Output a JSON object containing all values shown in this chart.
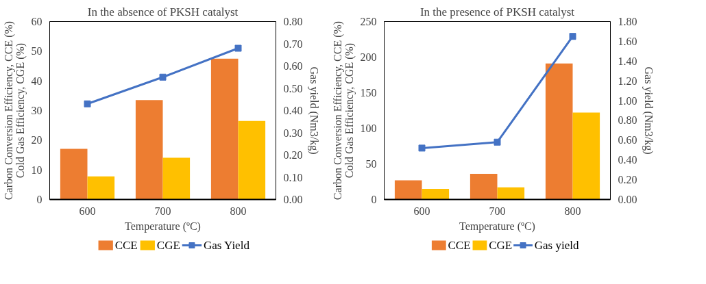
{
  "chart_data": [
    {
      "type": "bar",
      "title": "In the absence of PKSH catalyst",
      "categories": [
        "600",
        "700",
        "800"
      ],
      "xlabel": "Temperature (ºC)",
      "ylabel": "Carbon Conversion Efficiency, CCE (%)\nCold Gas Efficiency, CGE (%)",
      "y2label": "Gas yield (Nm3/kg)",
      "ylim": [
        0,
        60
      ],
      "yticks": [
        0,
        10,
        20,
        30,
        40,
        50,
        60
      ],
      "y2lim": [
        0,
        0.8
      ],
      "y2ticks": [
        {
          "value": 0,
          "label": "0.00"
        },
        {
          "value": 0.1,
          "label": "0.10"
        },
        {
          "value": 0.2,
          "label": "0.20"
        },
        {
          "value": 0.3,
          "label": "0.30"
        },
        {
          "value": 0.4,
          "label": "0.40"
        },
        {
          "value": 0.5,
          "label": "0.50"
        },
        {
          "value": 0.6,
          "label": "0.60"
        },
        {
          "value": 0.7,
          "label": "0.70"
        },
        {
          "value": 0.8,
          "label": "0.80"
        }
      ],
      "grid": false,
      "legend": "bottom",
      "series": [
        {
          "name": "CCE",
          "color": "#ed7d31",
          "values": [
            17.1,
            33.5,
            47.5
          ]
        },
        {
          "name": "CGE",
          "color": "#ffc000",
          "values": [
            7.8,
            14.1,
            26.5
          ]
        },
        {
          "name": "Gas Yield",
          "type": "line",
          "axis": "y2",
          "marker": "square",
          "color": "#4472c4",
          "values": [
            0.43,
            0.55,
            0.68
          ]
        }
      ]
    },
    {
      "type": "bar",
      "title": "In the presence of PKSH catalyst",
      "categories": [
        "600",
        "700",
        "800"
      ],
      "xlabel": "Temperature (ºC)",
      "ylabel": "Carbon Conversion Efficiency, CCE (%)\nCold Gas Efficiency, CGE (%)",
      "y2label": "Gas yield (Nm3/kg)",
      "ylim": [
        0,
        250
      ],
      "yticks": [
        0,
        50,
        100,
        150,
        200,
        250
      ],
      "y2lim": [
        0,
        1.8
      ],
      "y2ticks": [
        {
          "value": 0,
          "label": "0.00"
        },
        {
          "value": 0.2,
          "label": "0.20"
        },
        {
          "value": 0.4,
          "label": "0.40"
        },
        {
          "value": 0.6,
          "label": "0.60"
        },
        {
          "value": 0.8,
          "label": "0.80"
        },
        {
          "value": 1.0,
          "label": "1.00"
        },
        {
          "value": 1.2,
          "label": "1.20"
        },
        {
          "value": 1.4,
          "label": "1.40"
        },
        {
          "value": 1.6,
          "label": "1.60"
        },
        {
          "value": 1.8,
          "label": "1.80"
        }
      ],
      "grid": false,
      "legend": "bottom",
      "series": [
        {
          "name": "CCE",
          "color": "#ed7d31",
          "values": [
            27,
            36,
            191
          ]
        },
        {
          "name": "CGE",
          "color": "#ffc000",
          "values": [
            15,
            17,
            122
          ]
        },
        {
          "name": "Gas yield",
          "type": "line",
          "axis": "y2",
          "marker": "square",
          "color": "#4472c4",
          "values": [
            0.52,
            0.58,
            1.65
          ]
        }
      ]
    }
  ]
}
